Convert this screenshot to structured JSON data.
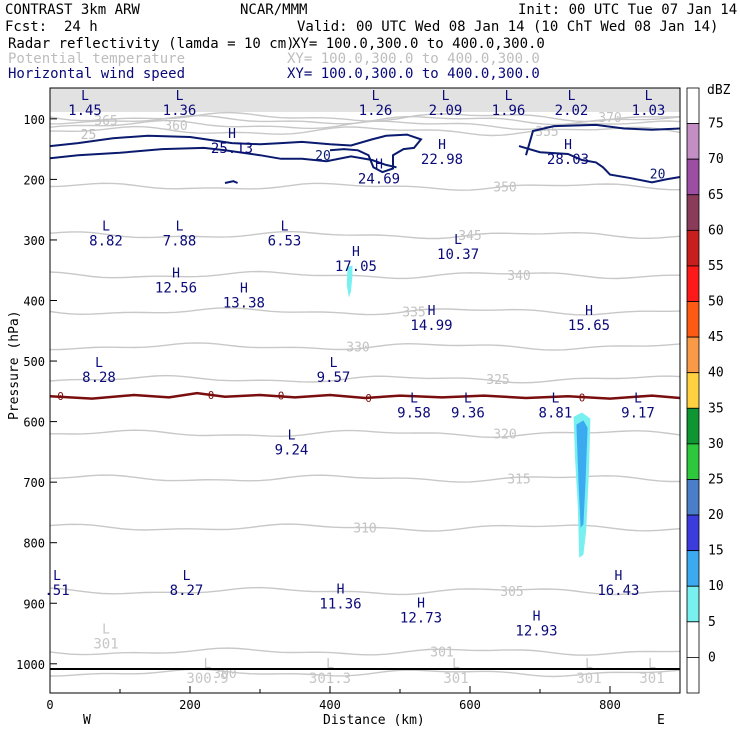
{
  "header": {
    "model": "CONTRAST   3km ARW",
    "org": "NCAR/MMM",
    "init": "Init: 00 UTC Tue 07 Jan 14",
    "fcst_label": "Fcst:",
    "fcst_value": "24 h",
    "valid": "Valid: 00 UTC Wed 08 Jan 14 (10 ChT Wed 08 Jan 14)",
    "fields": [
      {
        "name": "Radar reflectivity (lamda = 10 cm)",
        "xy": "XY= 100.0,300.0 to 400.0,300.0",
        "color": "#000000"
      },
      {
        "name": "Potential temperature",
        "xy": "XY= 100.0,300.0 to 400.0,300.0",
        "color": "#bdbdbd"
      },
      {
        "name": "Horizontal wind speed",
        "xy": "XY= 100.0,300.0 to 400.0,300.0",
        "color": "#0a0a7a"
      }
    ]
  },
  "chart_data": {
    "type": "cross-section contour",
    "xlabel": "Distance (km)",
    "ylabel": "Pressure (hPa)",
    "xlim": [
      0,
      900
    ],
    "ylim": [
      1050,
      55
    ],
    "xticks": [
      0,
      200,
      400,
      600,
      800
    ],
    "yticks": [
      100,
      200,
      300,
      400,
      500,
      600,
      700,
      800,
      900,
      1000
    ],
    "x_ends": {
      "left": "W",
      "right": "E"
    },
    "colorbar": {
      "unit": "dBZ",
      "levels": [
        75,
        70,
        65,
        60,
        55,
        50,
        45,
        40,
        35,
        30,
        25,
        20,
        15,
        10,
        5,
        0
      ],
      "colors": [
        "#ffffff",
        "#c38ec3",
        "#9c4ea3",
        "#8a3b5a",
        "#c81e1e",
        "#ff1a1a",
        "#ff5a14",
        "#fa9a46",
        "#ffd040",
        "#0f9632",
        "#2dc83c",
        "#4a7ec8",
        "#3c3cdc",
        "#3caaf0",
        "#78f0f0",
        "#ffffff"
      ]
    },
    "theta_contours": [
      {
        "label": "370",
        "p": 97,
        "x": 800
      },
      {
        "label": "365",
        "p": 102,
        "x": 80
      },
      {
        "label": "360",
        "p": 110,
        "x": 180
      },
      {
        "label": "355",
        "p": 120,
        "x": 710
      },
      {
        "label": "350",
        "p": 212,
        "x": 650
      },
      {
        "label": "345",
        "p": 292,
        "x": 600
      },
      {
        "label": "340",
        "p": 358,
        "x": 670
      },
      {
        "label": "335",
        "p": 418,
        "x": 520
      },
      {
        "label": "330",
        "p": 476,
        "x": 440
      },
      {
        "label": "325",
        "p": 530,
        "x": 640
      },
      {
        "label": "320",
        "p": 620,
        "x": 650
      },
      {
        "label": "315",
        "p": 694,
        "x": 670
      },
      {
        "label": "310",
        "p": 775,
        "x": 450
      },
      {
        "label": "305",
        "p": 880,
        "x": 660
      },
      {
        "label": "301",
        "p": 980,
        "x": 560
      },
      {
        "label": "300",
        "p": 1015,
        "x": 250
      }
    ],
    "wind_contours": [
      {
        "value": 25,
        "label": "25"
      },
      {
        "value": 20,
        "label": "20"
      },
      {
        "value": 0,
        "label": "0"
      }
    ],
    "annotations": [
      {
        "type": "L",
        "value": "1.45",
        "x": 50,
        "p": 72,
        "color": "#0a0a7a"
      },
      {
        "type": "L",
        "value": "1.36",
        "x": 185,
        "p": 72,
        "color": "#0a0a7a"
      },
      {
        "type": "L",
        "value": "1.26",
        "x": 465,
        "p": 72,
        "color": "#0a0a7a"
      },
      {
        "type": "L",
        "value": "2.09",
        "x": 565,
        "p": 72,
        "color": "#0a0a7a"
      },
      {
        "type": "L",
        "value": "1.96",
        "x": 655,
        "p": 72,
        "color": "#0a0a7a"
      },
      {
        "type": "L",
        "value": "2.02",
        "x": 745,
        "p": 72,
        "color": "#0a0a7a"
      },
      {
        "type": "L",
        "value": "1.03",
        "x": 855,
        "p": 72,
        "color": "#0a0a7a"
      },
      {
        "type": "H",
        "value": "25.13",
        "x": 260,
        "p": 135,
        "color": "#0a0a7a"
      },
      {
        "type": "H",
        "value": "22.98",
        "x": 560,
        "p": 153,
        "color": "#0a0a7a"
      },
      {
        "type": "H",
        "value": "28.03",
        "x": 740,
        "p": 153,
        "color": "#0a0a7a"
      },
      {
        "type": "H",
        "value": "24.69",
        "x": 470,
        "p": 185,
        "color": "#0a0a7a"
      },
      {
        "type": "L",
        "value": "8.82",
        "x": 80,
        "p": 288,
        "color": "#0a0a7a"
      },
      {
        "type": "L",
        "value": "7.88",
        "x": 185,
        "p": 288,
        "color": "#0a0a7a"
      },
      {
        "type": "L",
        "value": "6.53",
        "x": 335,
        "p": 288,
        "color": "#0a0a7a"
      },
      {
        "type": "L",
        "value": "10.37",
        "x": 583,
        "p": 310,
        "color": "#0a0a7a"
      },
      {
        "type": "H",
        "value": "17.05",
        "x": 437,
        "p": 330,
        "color": "#0a0a7a"
      },
      {
        "type": "H",
        "value": "12.56",
        "x": 180,
        "p": 365,
        "color": "#0a0a7a"
      },
      {
        "type": "H",
        "value": "13.38",
        "x": 277,
        "p": 390,
        "color": "#0a0a7a"
      },
      {
        "type": "H",
        "value": "14.99",
        "x": 545,
        "p": 427,
        "color": "#0a0a7a"
      },
      {
        "type": "H",
        "value": "15.65",
        "x": 770,
        "p": 427,
        "color": "#0a0a7a"
      },
      {
        "type": "L",
        "value": "8.28",
        "x": 70,
        "p": 513,
        "color": "#0a0a7a"
      },
      {
        "type": "L",
        "value": "9.57",
        "x": 405,
        "p": 513,
        "color": "#0a0a7a"
      },
      {
        "type": "L",
        "value": "9.58",
        "x": 520,
        "p": 572,
        "color": "#0a0a7a"
      },
      {
        "type": "L",
        "value": "9.36",
        "x": 597,
        "p": 572,
        "color": "#0a0a7a"
      },
      {
        "type": "L",
        "value": "8.81",
        "x": 722,
        "p": 572,
        "color": "#0a0a7a"
      },
      {
        "type": "L",
        "value": "9.17",
        "x": 840,
        "p": 572,
        "color": "#0a0a7a"
      },
      {
        "type": "L",
        "value": "9.24",
        "x": 345,
        "p": 633,
        "color": "#0a0a7a"
      },
      {
        "type": "L",
        "value": ".51",
        "x": 10,
        "p": 865,
        "color": "#0a0a7a"
      },
      {
        "type": "L",
        "value": "8.27",
        "x": 195,
        "p": 865,
        "color": "#0a0a7a"
      },
      {
        "type": "H",
        "value": "16.43",
        "x": 812,
        "p": 865,
        "color": "#0a0a7a"
      },
      {
        "type": "H",
        "value": "11.36",
        "x": 415,
        "p": 887,
        "color": "#0a0a7a"
      },
      {
        "type": "H",
        "value": "12.73",
        "x": 530,
        "p": 910,
        "color": "#0a0a7a"
      },
      {
        "type": "H",
        "value": "12.93",
        "x": 695,
        "p": 932,
        "color": "#0a0a7a"
      },
      {
        "type": "L",
        "value": "301",
        "x": 80,
        "p": 953,
        "color": "#c6c6c6"
      },
      {
        "type": "L",
        "value": "301.3",
        "x": 400,
        "p": 1010,
        "color": "#c6c6c6"
      },
      {
        "type": "L",
        "value": "301",
        "x": 580,
        "p": 1010,
        "color": "#c6c6c6"
      },
      {
        "type": "L",
        "value": "301",
        "x": 770,
        "p": 1010,
        "color": "#c6c6c6"
      },
      {
        "type": "L",
        "value": "301",
        "x": 860,
        "p": 1010,
        "color": "#c6c6c6"
      },
      {
        "type": "L",
        "value": "300.9",
        "x": 225,
        "p": 1010,
        "color": "#c6c6c6"
      }
    ]
  }
}
